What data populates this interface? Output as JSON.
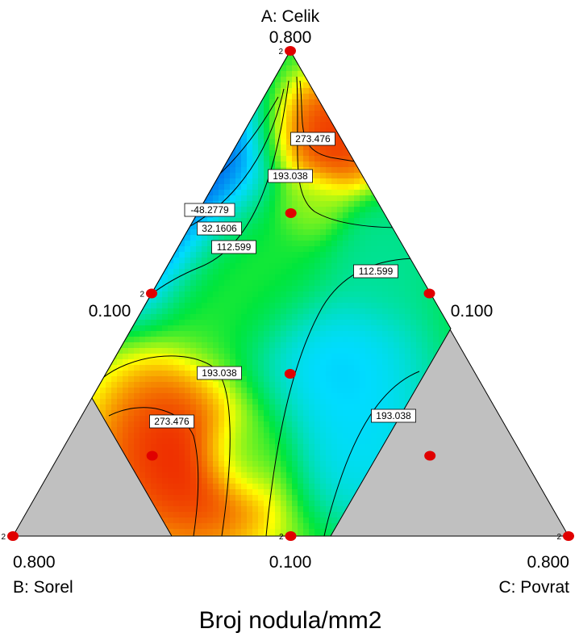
{
  "chart_data": {
    "type": "heatmap",
    "subtype": "ternary-mixture-contour",
    "title": "Broj nodula/mm2",
    "axes": {
      "A": {
        "name": "A: Celik",
        "max_label": "0.800",
        "min_label": "0.100"
      },
      "B": {
        "name": "B: Sorel",
        "max_label": "0.800",
        "min_label": "0.100"
      },
      "C": {
        "name": "C: Povrat",
        "max_label": "0.800",
        "min_label": "0.100"
      }
    },
    "colormap": [
      "blue",
      "cyan",
      "green",
      "yellow",
      "red"
    ],
    "out_of_region_color": "#c0c0c0",
    "grid": false,
    "contour_labels": [
      {
        "text": "273.476",
        "value": 273.476,
        "region": "upper-right"
      },
      {
        "text": "193.038",
        "value": 193.038,
        "region": "upper-center"
      },
      {
        "text": "-48.2779",
        "value": -48.2779,
        "region": "upper-left"
      },
      {
        "text": "32.1606",
        "value": 32.1606,
        "region": "upper-left"
      },
      {
        "text": "112.599",
        "value": 112.599,
        "region": "upper-left"
      },
      {
        "text": "112.599",
        "value": 112.599,
        "region": "right-center"
      },
      {
        "text": "193.038",
        "value": 193.038,
        "region": "lower-left"
      },
      {
        "text": "273.476",
        "value": 273.476,
        "region": "lower-left"
      },
      {
        "text": "193.038",
        "value": 193.038,
        "region": "lower-right"
      }
    ],
    "design_points": [
      {
        "A": 0.8,
        "B": 0.1,
        "C": 0.1,
        "replicates": "2"
      },
      {
        "A": 0.45,
        "B": 0.1,
        "C": 0.45,
        "replicates": ""
      },
      {
        "A": 0.1,
        "B": 0.1,
        "C": 0.8,
        "replicates": "2"
      },
      {
        "A": 0.1,
        "B": 0.45,
        "C": 0.45,
        "replicates": "2"
      },
      {
        "A": 0.1,
        "B": 0.8,
        "C": 0.1,
        "replicates": "2"
      },
      {
        "A": 0.45,
        "B": 0.45,
        "C": 0.1,
        "replicates": "2"
      },
      {
        "A": 0.567,
        "B": 0.217,
        "C": 0.217,
        "replicates": ""
      },
      {
        "A": 0.333,
        "B": 0.333,
        "C": 0.333,
        "replicates": ""
      },
      {
        "A": 0.217,
        "B": 0.567,
        "C": 0.217,
        "replicates": ""
      },
      {
        "A": 0.217,
        "B": 0.217,
        "C": 0.567,
        "replicates": ""
      }
    ]
  },
  "labels": {
    "apex_top_name": "A: Celik",
    "apex_top_value": "0.800",
    "mid_left_value": "0.100",
    "mid_right_value": "0.100",
    "bottom_left_value": "0.800",
    "bottom_left_name": "B: Sorel",
    "bottom_center_value": "0.100",
    "bottom_right_value": "0.800",
    "bottom_right_name": "C: Povrat",
    "chart_title": "Broj nodula/mm2"
  }
}
